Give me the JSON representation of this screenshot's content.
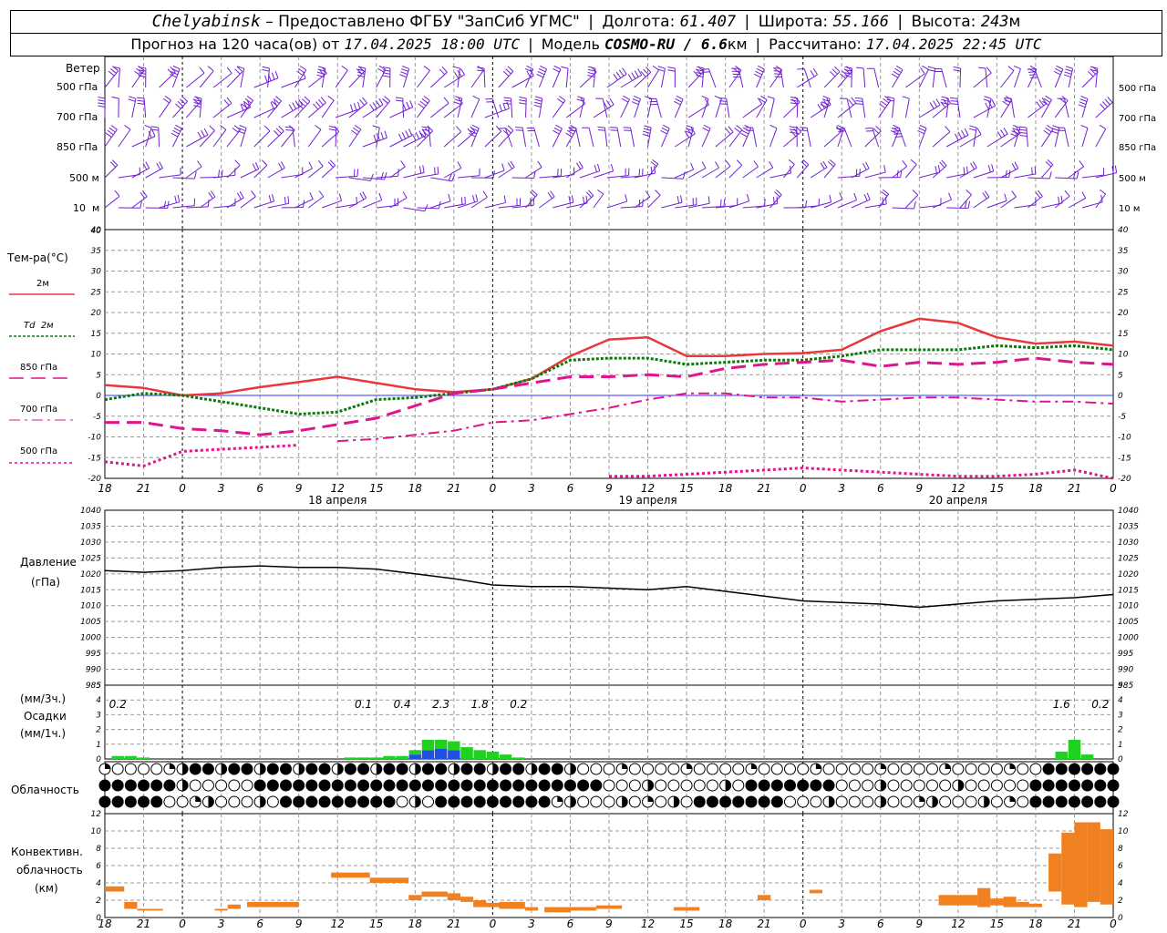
{
  "header": {
    "station": "Chelyabinsk",
    "provider": "– Предоставлено ФГБУ \"ЗапСиб УГМС\"",
    "lon_label": "Долгота:",
    "lon_value": "61.407",
    "lat_label": "Широта:",
    "lat_value": "55.166",
    "alt_label": "Высота:",
    "alt_value": "243",
    "alt_unit": "м",
    "forecast_label": "Прогноз на 120 часа(ов) от",
    "forecast_start": "17.04.2025 18:00 UTC",
    "model_label": "Модель",
    "model_value": "COSMO-RU / 6.6",
    "model_unit": "км",
    "calc_label": "Рассчитано:",
    "calc_value": "17.04.2025 22:45 UTC"
  },
  "labels": {
    "wind": "Ветер",
    "wind_levels": [
      "500 гПа",
      "700 гПа",
      "850 гПа",
      "500 м",
      "10  м"
    ],
    "temp_title": "Тем-ра(°C)",
    "legend": [
      "2м",
      "Td  2м",
      "850 гПа",
      "700 гПа",
      "500 гПа"
    ],
    "pressure_title": "Давление",
    "pressure_unit": "(гПа)",
    "precip_unit3": "(мм/3ч.)",
    "precip_title": "Осадки",
    "precip_unit1": "(мм/1ч.)",
    "cloud_title": "Облачность",
    "conv_title1": "Конвективн.",
    "conv_title2": "облачность",
    "conv_unit": "(км)"
  },
  "time_ticks": [
    "18",
    "21",
    "0",
    "3",
    "6",
    "9",
    "12",
    "15",
    "18",
    "21",
    "0",
    "3",
    "6",
    "9",
    "12",
    "15",
    "18",
    "21",
    "0",
    "3",
    "6",
    "9",
    "12",
    "15",
    "18",
    "21",
    "0"
  ],
  "day_labels": [
    "18 апреля",
    "19 апреля",
    "20 апреля"
  ],
  "colors": {
    "t2m": "#e8383c",
    "td2m": "#0a7a0a",
    "t850": "#e0148c",
    "t700": "#e0148c",
    "t500": "#e0148c",
    "wind": "#7020d0",
    "precip_rain": "#1ed21e",
    "precip_mix": "#2050e0",
    "conv": "#f08020",
    "pressure": "#000000"
  },
  "chart_data": [
    {
      "type": "line",
      "title": "Тем-ра(°C)",
      "ylim": [
        -20,
        40
      ],
      "yticks": [
        -20,
        -15,
        -10,
        -5,
        0,
        5,
        10,
        15,
        20,
        25,
        30,
        35,
        40
      ],
      "x_hours": [
        0,
        3,
        6,
        9,
        12,
        15,
        18,
        21,
        24,
        27,
        30,
        33,
        36,
        39,
        42,
        45,
        48,
        51,
        54,
        57,
        60,
        63,
        66,
        69,
        72,
        75,
        78
      ],
      "series": [
        {
          "name": "2м",
          "values": [
            2.5,
            1.8,
            0.0,
            0.5,
            2.0,
            3.2,
            4.5,
            3.0,
            1.5,
            0.8,
            1.5,
            4.0,
            9.5,
            13.5,
            14.0,
            9.5,
            9.5,
            10.0,
            10.2,
            11.0,
            15.5,
            18.5,
            17.5,
            14.0,
            12.5,
            13.0,
            12.0
          ]
        },
        {
          "name": "Td  2м",
          "values": [
            -1.0,
            0.5,
            0.0,
            -1.5,
            -3.0,
            -4.5,
            -4.0,
            -1.0,
            -0.5,
            0.5,
            1.5,
            4.0,
            8.5,
            9.0,
            9.0,
            7.5,
            8.0,
            8.5,
            8.5,
            9.5,
            11.0,
            11.0,
            11.0,
            12.0,
            11.5,
            12.0,
            11.0
          ]
        },
        {
          "name": "850 гПа",
          "values": [
            -6.5,
            -6.5,
            -8.0,
            -8.5,
            -9.5,
            -8.5,
            -7.0,
            -5.5,
            -2.5,
            0.5,
            1.5,
            3.0,
            4.5,
            4.5,
            5.0,
            4.5,
            6.5,
            7.5,
            8.0,
            8.5,
            7.0,
            8.0,
            7.5,
            8.0,
            9.0,
            8.0,
            7.5
          ]
        },
        {
          "name": "700 гПа",
          "values": [
            null,
            null,
            null,
            null,
            null,
            null,
            -11.0,
            -10.5,
            -9.5,
            -8.5,
            -6.5,
            -6.0,
            -4.5,
            -3.0,
            -1.0,
            0.5,
            0.5,
            -0.5,
            -0.5,
            -1.5,
            -1.0,
            -0.5,
            -0.5,
            -1.0,
            -1.5,
            -1.5,
            -2.0
          ]
        },
        {
          "name": "500 гПа",
          "values": [
            -16.0,
            -17.0,
            -13.5,
            -13.0,
            -12.5,
            -12.0,
            null,
            null,
            null,
            null,
            null,
            null,
            null,
            -19.5,
            -19.5,
            -19.0,
            -18.5,
            -18.0,
            -17.5,
            -18.0,
            -18.5,
            -19.0,
            -19.5,
            -19.5,
            -19.0,
            -18.0,
            -20.0
          ]
        }
      ]
    },
    {
      "type": "line",
      "title": "Давление",
      "ylim": [
        985,
        1040
      ],
      "yticks": [
        985,
        990,
        995,
        1000,
        1005,
        1010,
        1015,
        1020,
        1025,
        1030,
        1035,
        1040
      ],
      "x_hours": [
        0,
        3,
        6,
        9,
        12,
        15,
        18,
        21,
        24,
        27,
        30,
        33,
        36,
        39,
        42,
        45,
        48,
        51,
        54,
        57,
        60,
        63,
        66,
        69,
        72,
        75,
        78
      ],
      "series": [
        {
          "name": "Давление",
          "values": [
            1021,
            1020.5,
            1021,
            1022,
            1022.5,
            1022,
            1022,
            1021.5,
            1020,
            1018.5,
            1016.5,
            1016,
            1016,
            1015.5,
            1015,
            1016,
            1014.5,
            1013,
            1011.5,
            1011,
            1010.5,
            1009.5,
            1010.5,
            1011.5,
            1012,
            1012.5,
            1013.5
          ]
        }
      ]
    },
    {
      "type": "bar",
      "title": "Осадки",
      "ylim": [
        0,
        5
      ],
      "yticks": [
        0,
        1,
        2,
        3,
        4,
        5
      ],
      "x_hours": [
        1,
        2,
        3,
        19,
        20,
        21,
        22,
        23,
        24,
        25,
        26,
        27,
        28,
        29,
        30,
        31,
        32,
        74,
        75,
        76
      ],
      "series": [
        {
          "name": "rain",
          "values": [
            0.2,
            0.2,
            0.1,
            0.1,
            0.1,
            0.1,
            0.2,
            0.2,
            0.3,
            0.7,
            0.6,
            0.6,
            0.8,
            0.6,
            0.5,
            0.3,
            0.1,
            0.5,
            1.3,
            0.3
          ]
        },
        {
          "name": "mix",
          "values": [
            0,
            0,
            0,
            0,
            0,
            0,
            0,
            0,
            0.3,
            0.6,
            0.7,
            0.6,
            0,
            0,
            0,
            0,
            0,
            0,
            0,
            0
          ]
        }
      ],
      "annotations": [
        {
          "hour": 1,
          "text": "0.2"
        },
        {
          "hour": 20,
          "text": "0.1"
        },
        {
          "hour": 23,
          "text": "0.4"
        },
        {
          "hour": 26,
          "text": "2.3"
        },
        {
          "hour": 29,
          "text": "1.8"
        },
        {
          "hour": 32,
          "text": "0.2"
        },
        {
          "hour": 74,
          "text": "1.6"
        },
        {
          "hour": 77,
          "text": "0.2"
        }
      ]
    },
    {
      "type": "bar",
      "title": "Конвективн. облачность",
      "ylim": [
        0,
        12
      ],
      "yticks": [
        0,
        2,
        4,
        6,
        8,
        10,
        12
      ],
      "bars": [
        {
          "x0": 0,
          "x1": 1.5,
          "lo": 3,
          "hi": 3.6
        },
        {
          "x0": 1.5,
          "x1": 2.5,
          "lo": 1,
          "hi": 1.8
        },
        {
          "x0": 2.5,
          "x1": 4.5,
          "lo": 0.8,
          "hi": 1.0
        },
        {
          "x0": 8.5,
          "x1": 9.5,
          "lo": 0.8,
          "hi": 1.0
        },
        {
          "x0": 9.5,
          "x1": 10.5,
          "lo": 1,
          "hi": 1.5
        },
        {
          "x0": 11,
          "x1": 15,
          "lo": 1.2,
          "hi": 1.8
        },
        {
          "x0": 17.5,
          "x1": 20.5,
          "lo": 4.6,
          "hi": 5.2
        },
        {
          "x0": 20.5,
          "x1": 23.5,
          "lo": 4.0,
          "hi": 4.6
        },
        {
          "x0": 23.5,
          "x1": 24.5,
          "lo": 2,
          "hi": 2.6
        },
        {
          "x0": 24.5,
          "x1": 26.5,
          "lo": 2.4,
          "hi": 3.0
        },
        {
          "x0": 26.5,
          "x1": 27.5,
          "lo": 2,
          "hi": 2.8
        },
        {
          "x0": 27.5,
          "x1": 28.5,
          "lo": 1.8,
          "hi": 2.4
        },
        {
          "x0": 28.5,
          "x1": 29.5,
          "lo": 1.2,
          "hi": 2.0
        },
        {
          "x0": 29.5,
          "x1": 30.5,
          "lo": 1.2,
          "hi": 1.7
        },
        {
          "x0": 30.5,
          "x1": 32.5,
          "lo": 1.0,
          "hi": 1.8
        },
        {
          "x0": 32.5,
          "x1": 33.5,
          "lo": 0.8,
          "hi": 1.2
        },
        {
          "x0": 34,
          "x1": 36,
          "lo": 0.6,
          "hi": 1.2
        },
        {
          "x0": 36,
          "x1": 38,
          "lo": 0.8,
          "hi": 1.2
        },
        {
          "x0": 38,
          "x1": 40,
          "lo": 1,
          "hi": 1.4
        },
        {
          "x0": 44,
          "x1": 46,
          "lo": 0.8,
          "hi": 1.2
        },
        {
          "x0": 50.5,
          "x1": 51.5,
          "lo": 2,
          "hi": 2.6
        },
        {
          "x0": 54.5,
          "x1": 55.5,
          "lo": 2.8,
          "hi": 3.2
        },
        {
          "x0": 64.5,
          "x1": 67.5,
          "lo": 1.4,
          "hi": 2.6
        },
        {
          "x0": 67.5,
          "x1": 68.5,
          "lo": 1.2,
          "hi": 3.4
        },
        {
          "x0": 68.5,
          "x1": 69.5,
          "lo": 1.4,
          "hi": 2.2
        },
        {
          "x0": 69.5,
          "x1": 70.5,
          "lo": 1.2,
          "hi": 2.4
        },
        {
          "x0": 70.5,
          "x1": 71.5,
          "lo": 1.2,
          "hi": 1.8
        },
        {
          "x0": 71.5,
          "x1": 72.5,
          "lo": 1.2,
          "hi": 1.6
        },
        {
          "x0": 73,
          "x1": 74,
          "lo": 3,
          "hi": 7.4
        },
        {
          "x0": 74,
          "x1": 75,
          "lo": 1.5,
          "hi": 9.8
        },
        {
          "x0": 75,
          "x1": 76,
          "lo": 1.2,
          "hi": 11.0
        },
        {
          "x0": 76,
          "x1": 77,
          "lo": 1.8,
          "hi": 11.0
        },
        {
          "x0": 77,
          "x1": 78,
          "lo": 1.5,
          "hi": 10.2
        }
      ]
    }
  ]
}
